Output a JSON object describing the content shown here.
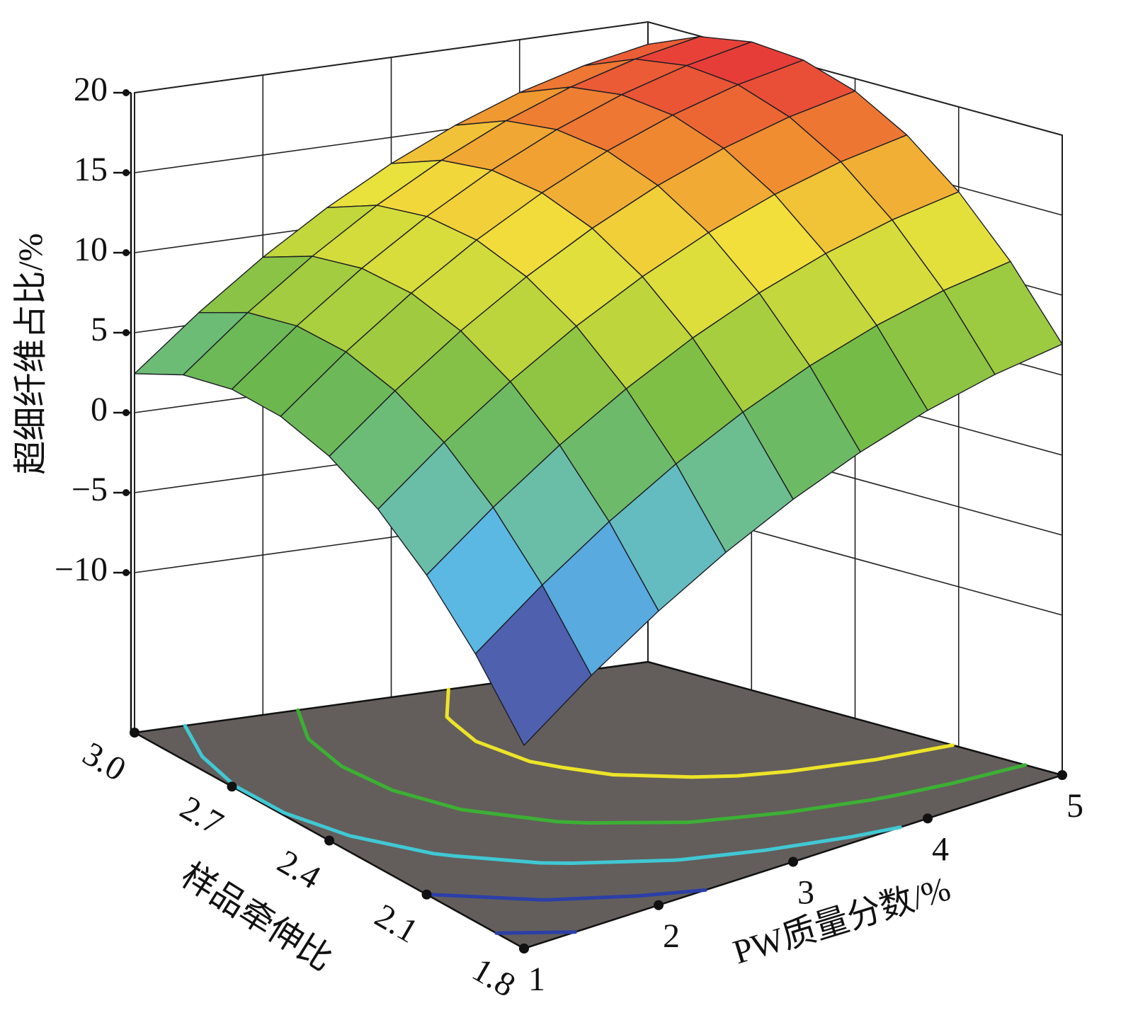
{
  "chart_data": {
    "type": "surface",
    "x_label": "PW质量分数/%",
    "y_label": "样品牵伸比",
    "z_label": "超细纤维占比/%",
    "x": [
      1,
      1.5,
      2,
      2.5,
      3,
      3.5,
      4,
      4.5,
      5
    ],
    "y": [
      1.8,
      1.95,
      2.1,
      2.25,
      2.4,
      2.55,
      2.7,
      2.85,
      3
    ],
    "z": [
      [
        -7.3,
        -4.28,
        -1.61,
        0.7,
        2.66,
        4.26,
        5.51,
        6.4,
        6.94
      ],
      [
        -3.26,
        -0.22,
        2.49,
        4.84,
        6.82,
        8.46,
        9.73,
        10.66,
        11.22
      ],
      [
        -0.03,
        3.05,
        5.78,
        8.15,
        10.17,
        11.83,
        13.14,
        14.09,
        14.69
      ],
      [
        2.4,
        5.52,
        8.27,
        10.68,
        12.72,
        14.42,
        15.75,
        16.74,
        17.36
      ],
      [
        4.02,
        7.16,
        9.95,
        12.38,
        14.46,
        16.18,
        17.55,
        18.56,
        19.22
      ],
      [
        4.83,
        8.01,
        10.82,
        13.29,
        15.39,
        17.15,
        18.54,
        19.59,
        20.27
      ],
      [
        4.84,
        8.04,
        10.89,
        13.38,
        15.52,
        17.3,
        18.73,
        19.8,
        20.52
      ],
      [
        4.05,
        7.29,
        10.16,
        12.69,
        14.85,
        16.67,
        18.12,
        19.22,
        19.97
      ],
      [
        2.44,
        5.7,
        8.61,
        11.16,
        13.36,
        15.2,
        16.69,
        17.82,
        18.6
      ]
    ],
    "xlim": [
      1,
      5
    ],
    "ylim": [
      1.8,
      3
    ],
    "zlim": [
      -20,
      20
    ],
    "xticks": [
      1,
      2,
      3,
      4,
      5
    ],
    "yticks": [
      1.8,
      2.1,
      2.4,
      2.7,
      {
        "value": 3,
        "label": "3.0"
      }
    ],
    "zticks": [
      {
        "value": -10,
        "label": "−10"
      },
      {
        "value": -5,
        "label": "−5"
      },
      0,
      5,
      10,
      15,
      20
    ],
    "colormap": [
      "#44458f",
      "#4f5fae",
      "#5ab8e8",
      "#6cbfa0",
      "#6db84a",
      "#b8d43c",
      "#f2e43c",
      "#f09030",
      "#e6303a"
    ],
    "contour_levels": [
      -5,
      0,
      5,
      10,
      15
    ],
    "contour_colors": [
      "#2c3fa8",
      "#2c3fa8",
      "#40c8d4",
      "#3cb034",
      "#ece428"
    ],
    "floor_color": "#635e5b",
    "grid": true
  }
}
